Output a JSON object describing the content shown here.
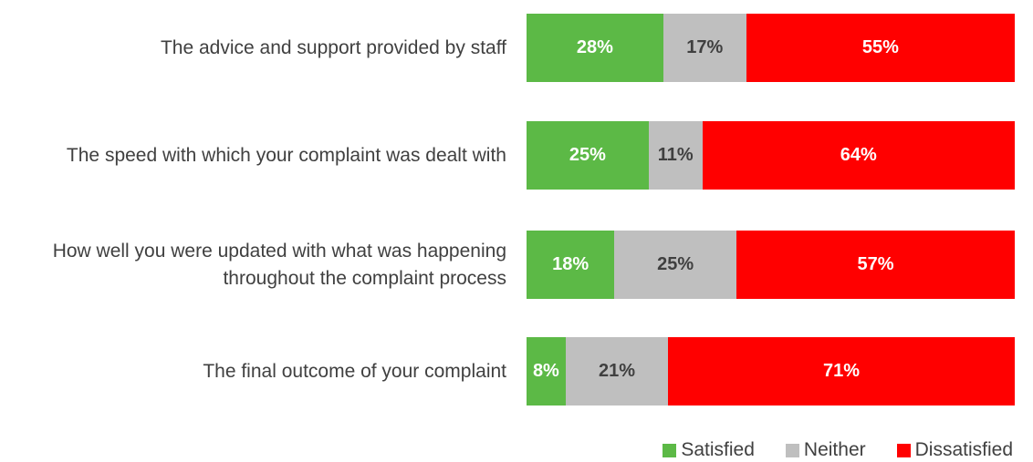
{
  "chart_data": {
    "type": "stacked-bar-horizontal",
    "categories": [
      "The advice and support provided by staff",
      "The speed with which your complaint was dealt with",
      "How well you were updated with what was happening throughout the complaint process",
      "The final outcome of your complaint"
    ],
    "series": [
      {
        "name": "Satisfied",
        "color": "#5cb946",
        "values": [
          28,
          25,
          18,
          8
        ],
        "value_labels": [
          "28%",
          "25%",
          "18%",
          "8%"
        ]
      },
      {
        "name": "Neither",
        "color": "#bfbfbf",
        "values": [
          17,
          11,
          25,
          21
        ],
        "value_labels": [
          "17%",
          "11%",
          "25%",
          "21%"
        ]
      },
      {
        "name": "Dissatisfied",
        "color": "#ff0000",
        "values": [
          55,
          64,
          57,
          71
        ],
        "value_labels": [
          "55%",
          "64%",
          "57%",
          "71%"
        ]
      }
    ],
    "legend": "bottom"
  }
}
